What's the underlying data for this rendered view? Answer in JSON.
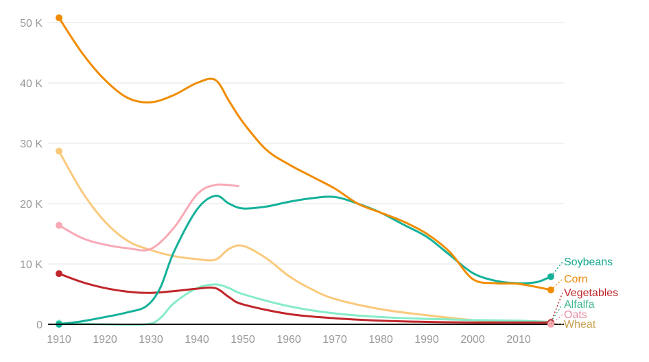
{
  "chart_data": {
    "type": "line",
    "title": "",
    "xlabel": "",
    "ylabel": "",
    "xlim": [
      1908,
      2017
    ],
    "ylim": [
      0,
      52000
    ],
    "grid": true,
    "x_ticks": [
      "1910",
      "1920",
      "1930",
      "1940",
      "1950",
      "1960",
      "1970",
      "1980",
      "1990",
      "2000",
      "2010"
    ],
    "y_ticks": [
      {
        "v": 0,
        "label": "0"
      },
      {
        "v": 10000,
        "label": "10 K"
      },
      {
        "v": 20000,
        "label": "20 K"
      },
      {
        "v": 30000,
        "label": "30 K"
      },
      {
        "v": 40000,
        "label": "40 K"
      },
      {
        "v": 50000,
        "label": "50 K"
      }
    ],
    "legend": "end-labels-right",
    "series": [
      {
        "name": "Soybeans",
        "color": "#14b19a",
        "labelColor": "#14a58f",
        "x": [
          1910,
          1915,
          1920,
          1925,
          1929,
          1932,
          1935,
          1940,
          1944,
          1947,
          1950,
          1955,
          1960,
          1965,
          1970,
          1975,
          1980,
          1985,
          1990,
          1995,
          2000,
          2005,
          2010,
          2014,
          2017
        ],
        "y": [
          0,
          500,
          1200,
          2000,
          3000,
          6000,
          12000,
          19000,
          21300,
          20000,
          19200,
          19500,
          20300,
          20900,
          21100,
          20000,
          18500,
          16500,
          14500,
          11500,
          8500,
          7200,
          6800,
          7000,
          7900
        ],
        "endDot": "filled"
      },
      {
        "name": "Corn",
        "color": "#f08c00",
        "labelColor": "#ee8a0c",
        "x": [
          1910,
          1915,
          1920,
          1925,
          1930,
          1935,
          1940,
          1944,
          1947,
          1950,
          1955,
          1960,
          1965,
          1970,
          1975,
          1980,
          1985,
          1990,
          1995,
          2000,
          2005,
          2010,
          2017
        ],
        "y": [
          50800,
          45000,
          40500,
          37500,
          36800,
          38000,
          40000,
          40500,
          37000,
          33500,
          29000,
          26500,
          24500,
          22500,
          20000,
          18500,
          17000,
          15000,
          12000,
          7500,
          6800,
          6700,
          5700
        ],
        "endDot": "filled"
      },
      {
        "name": "Vegetables",
        "color": "#c0262b",
        "labelColor": "#c0262b",
        "x": [
          1910,
          1915,
          1920,
          1925,
          1930,
          1935,
          1940,
          1944,
          1947,
          1950,
          1960,
          1970,
          1980,
          1990,
          2000,
          2017
        ],
        "y": [
          8400,
          7000,
          6000,
          5400,
          5200,
          5500,
          5900,
          6000,
          4500,
          3300,
          1700,
          1000,
          600,
          400,
          300,
          300
        ],
        "endDot": "open"
      },
      {
        "name": "Alfalfa",
        "color": "#86ecc8",
        "labelColor": "#3fb890",
        "x": [
          1910,
          1920,
          1929,
          1932,
          1935,
          1940,
          1944,
          1947,
          1950,
          1960,
          1970,
          1980,
          1990,
          2000,
          2010,
          2017
        ],
        "y": [
          200,
          0,
          0,
          1000,
          3500,
          6000,
          6600,
          6000,
          5000,
          3000,
          1800,
          1200,
          900,
          700,
          600,
          400
        ],
        "endDot": "none"
      },
      {
        "name": "Oats",
        "color": "#f8a9b6",
        "labelColor": "#e58fa0",
        "x": [
          1910,
          1915,
          1920,
          1925,
          1930,
          1935,
          1940,
          1944,
          1949
        ],
        "y": [
          16400,
          14300,
          13200,
          12600,
          12500,
          16000,
          21500,
          23100,
          22900
        ],
        "endDot": "filled-at-zero"
      },
      {
        "name": "Wheat",
        "color": "#fac97c",
        "labelColor": "#c9a050",
        "x": [
          1910,
          1915,
          1920,
          1925,
          1930,
          1935,
          1940,
          1944,
          1947,
          1950,
          1955,
          1960,
          1965,
          1970,
          1980,
          1990,
          2000,
          2010,
          2017
        ],
        "y": [
          28700,
          22000,
          17000,
          13800,
          12300,
          11300,
          10800,
          10700,
          12500,
          13000,
          11000,
          8000,
          5800,
          4200,
          2500,
          1500,
          700,
          300,
          200
        ],
        "endDot": "none"
      }
    ]
  }
}
